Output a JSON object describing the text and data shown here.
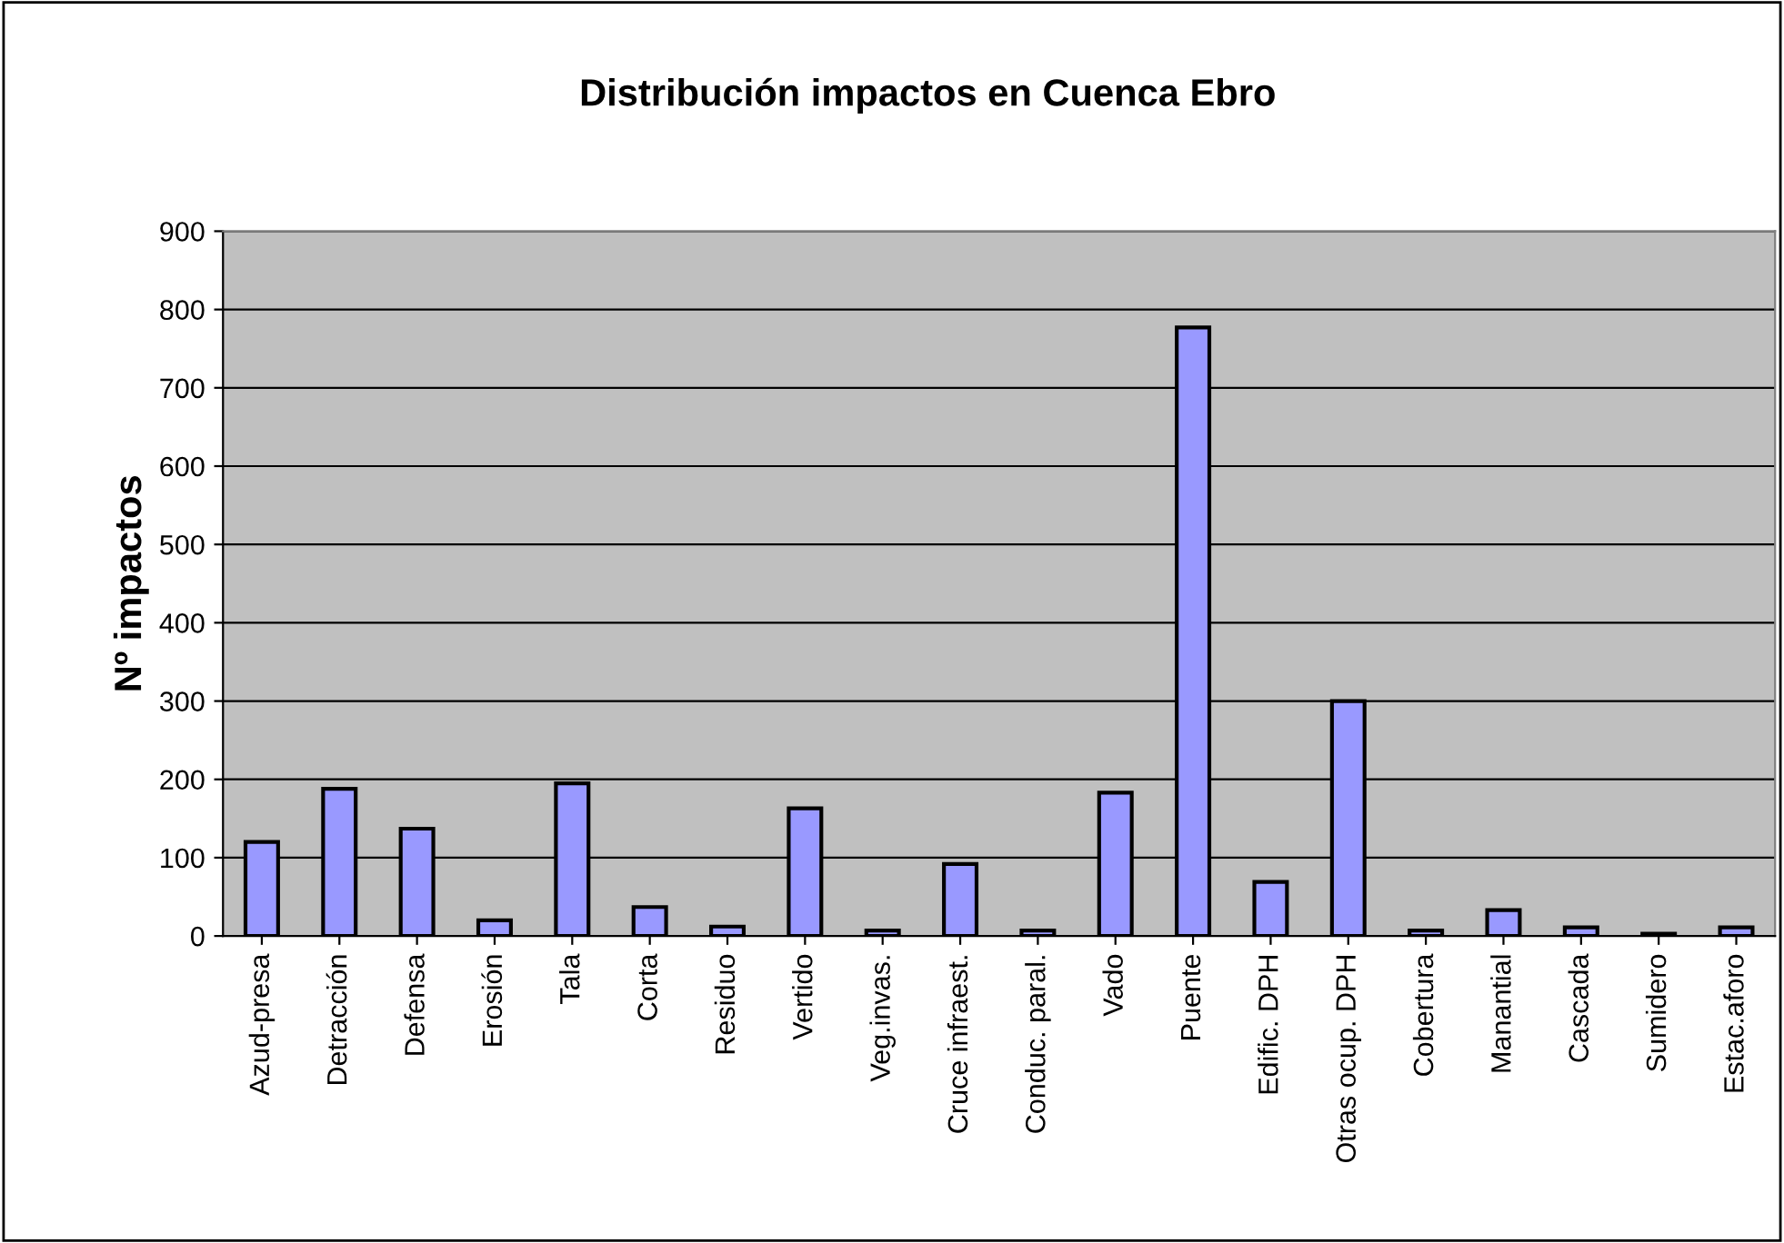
{
  "chart_data": {
    "type": "bar",
    "title": "Distribución impactos en Cuenca Ebro",
    "ylabel": "Nº impactos",
    "categories": [
      "Azud-presa",
      "Detracción",
      "Defensa",
      "Erosión",
      "Tala",
      "Corta",
      "Residuo",
      "Vertido",
      "Veg.invas.",
      "Cruce infraest.",
      "Conduc. paral.",
      "Vado",
      "Puente",
      "Edific. DPH",
      "Otras ocup. DPH",
      "Cobertura",
      "Manantial",
      "Cascada",
      "Sumidero",
      "Estac.aforo"
    ],
    "values": [
      120,
      188,
      137,
      20,
      195,
      37,
      12,
      163,
      7,
      92,
      7,
      183,
      777,
      69,
      300,
      7,
      33,
      11,
      3,
      11
    ],
    "color": "#9999ff",
    "ylim": [
      0,
      900
    ],
    "yticks": [
      0,
      100,
      200,
      300,
      400,
      500,
      600,
      700,
      800,
      900
    ],
    "grid": "y",
    "legend": false
  }
}
